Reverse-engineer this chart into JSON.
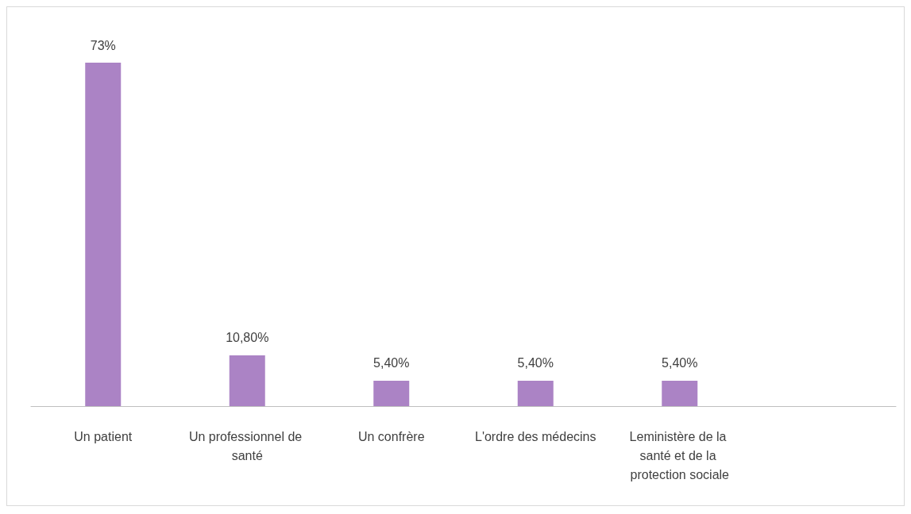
{
  "chart_data": {
    "type": "bar",
    "categories": [
      "Un patient",
      "Un professionnel de santé",
      "Un confrère",
      "L'ordre des médecins",
      "Leministère de la santé et de la protection sociale",
      null
    ],
    "values": [
      73,
      10.8,
      5.4,
      5.4,
      5.4,
      null
    ],
    "value_labels": [
      "73%",
      "10,80%",
      "5,40%",
      "5,40%",
      "5,40%",
      null
    ],
    "color": "#ab83c5"
  }
}
